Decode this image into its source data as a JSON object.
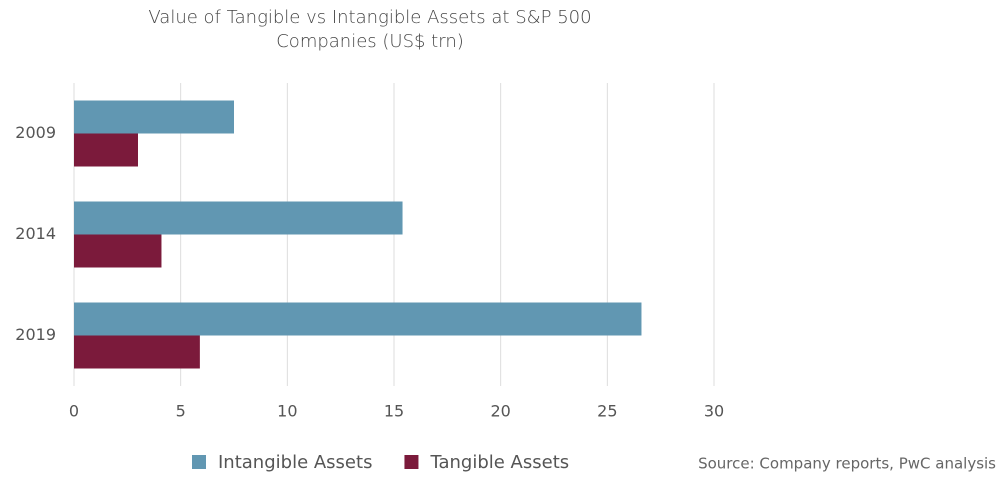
{
  "chart_data": {
    "type": "bar",
    "orientation": "horizontal",
    "title": "Value of Tangible vs Intangible Assets at S&P 500 Companies (US$ trn)",
    "categories": [
      "2009",
      "2014",
      "2019"
    ],
    "series": [
      {
        "name": "Intangible Assets",
        "color": "#6197b2",
        "values": [
          7.5,
          15.4,
          26.6
        ]
      },
      {
        "name": "Tangible Assets",
        "color": "#7b1a3b",
        "values": [
          3.0,
          4.1,
          5.9
        ]
      }
    ],
    "xlim": [
      0,
      30
    ],
    "xticks": [
      0,
      5,
      10,
      15,
      20,
      25,
      30
    ],
    "grid": true,
    "legend": "bottom",
    "source": "Source: Company reports, PwC analysis"
  }
}
